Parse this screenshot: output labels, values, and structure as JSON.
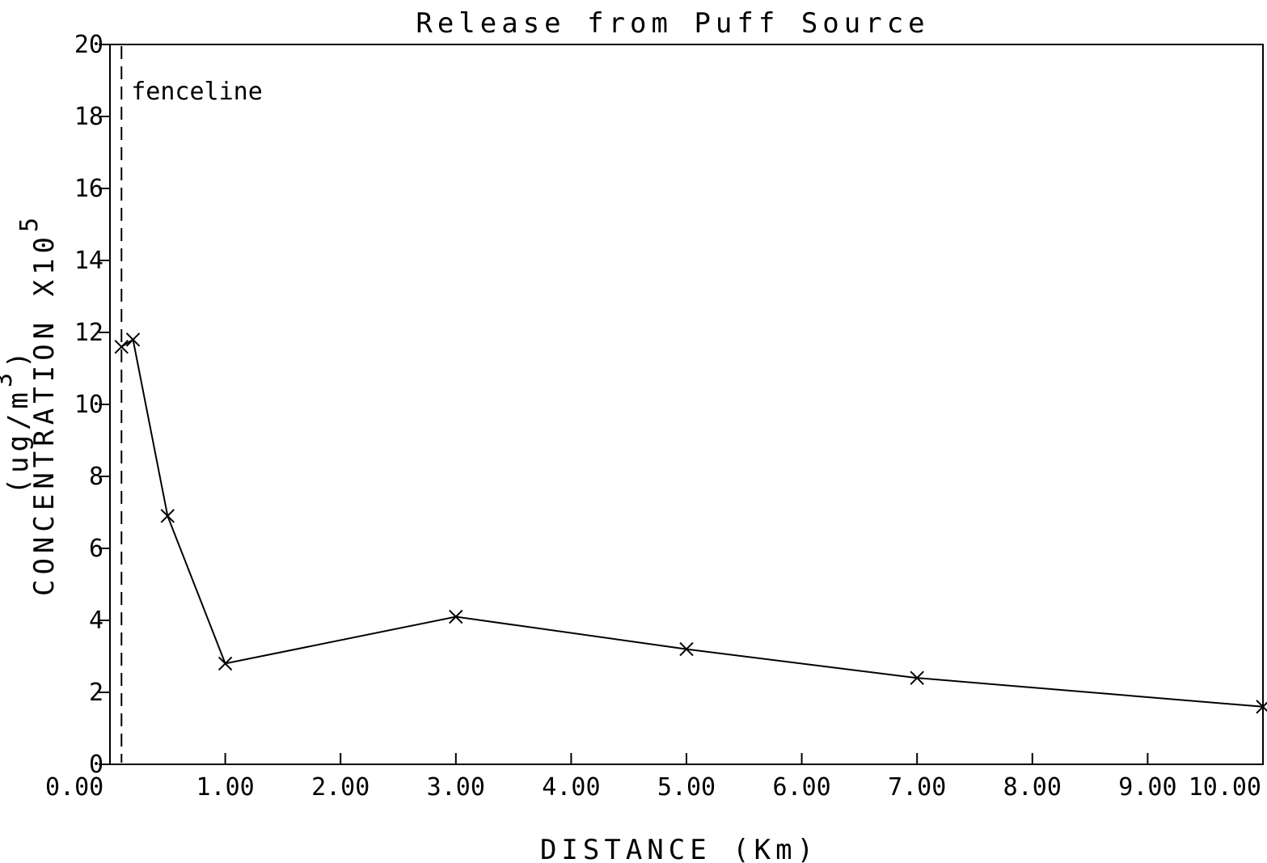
{
  "chart_data": {
    "type": "line",
    "title": "Release from Puff Source",
    "xlabel": "DISTANCE (Km)",
    "ylabel": {
      "main": "CONCENTRATION X10",
      "exp1": "5",
      "units_open": "(ug/m",
      "exp2": "3",
      "units_close": ")"
    },
    "xlim": [
      0,
      10
    ],
    "ylim": [
      0,
      20
    ],
    "x_ticks": [
      0,
      1,
      2,
      3,
      4,
      5,
      6,
      7,
      8,
      9,
      10
    ],
    "x_tick_labels": [
      "0.00",
      "1.00",
      "2.00",
      "3.00",
      "4.00",
      "5.00",
      "6.00",
      "7.00",
      "8.00",
      "9.00",
      "10.00"
    ],
    "y_ticks": [
      0,
      2,
      4,
      6,
      8,
      10,
      12,
      14,
      16,
      18,
      20
    ],
    "y_tick_labels": [
      "0",
      "2",
      "4",
      "6",
      "8",
      "10",
      "12",
      "14",
      "16",
      "18",
      "20"
    ],
    "grid": false,
    "series": [
      {
        "x": [
          0.1,
          0.2,
          0.5,
          1.0,
          3.0,
          5.0,
          7.0,
          10.0
        ],
        "y": [
          11.6,
          11.8,
          6.9,
          2.8,
          4.1,
          3.2,
          2.4,
          1.6
        ],
        "marker": "x",
        "color": "#000000"
      }
    ],
    "annotations": [
      {
        "text": "fenceline",
        "x": 0.1,
        "style": "dashed-vertical-line"
      }
    ]
  }
}
